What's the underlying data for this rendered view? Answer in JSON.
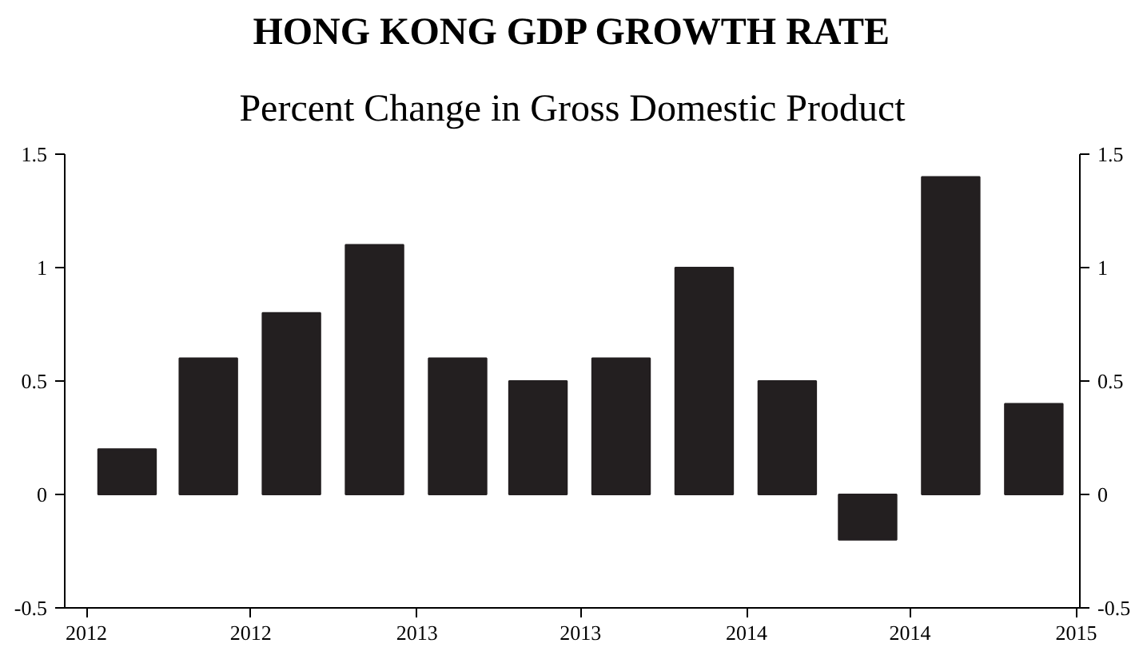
{
  "chart_data": {
    "type": "bar",
    "title": "HONG KONG GDP GROWTH RATE",
    "subtitle": "Percent Change in Gross Domestic Product",
    "x": [
      "2012-02-15",
      "2012-05-15",
      "2012-08-15",
      "2012-11-15",
      "2013-02-15",
      "2013-05-15",
      "2013-08-15",
      "2013-11-15",
      "2014-02-15",
      "2014-05-15",
      "2014-08-15",
      "2014-11-15"
    ],
    "series": [
      {
        "color": "#231f20",
        "values": [
          0.2,
          0.6,
          0.8,
          1.1,
          0.6,
          0.5,
          0.6,
          1.0,
          0.5,
          -0.2,
          1.4,
          0.4
        ]
      }
    ],
    "xlim": [
      "2011-12-08",
      "2015-01-05"
    ],
    "xticks": [
      {
        "value": "2012-01-01",
        "label": "2012"
      },
      {
        "value": "2012-07-01",
        "label": "2012"
      },
      {
        "value": "2013-01-01",
        "label": "2013"
      },
      {
        "value": "2013-07-01",
        "label": "2013"
      },
      {
        "value": "2014-01-01",
        "label": "2014"
      },
      {
        "value": "2014-07-01",
        "label": "2014"
      },
      {
        "value": "2015-01-01",
        "label": "2015"
      }
    ],
    "ylim": [
      -0.5,
      1.5
    ],
    "yticks": [
      -0.5,
      0,
      0.5,
      1,
      1.5
    ],
    "y2lim": [
      -0.5,
      1.5
    ],
    "y2ticks": [
      -0.5,
      0,
      0.5,
      1,
      1.5
    ],
    "grid": false
  }
}
